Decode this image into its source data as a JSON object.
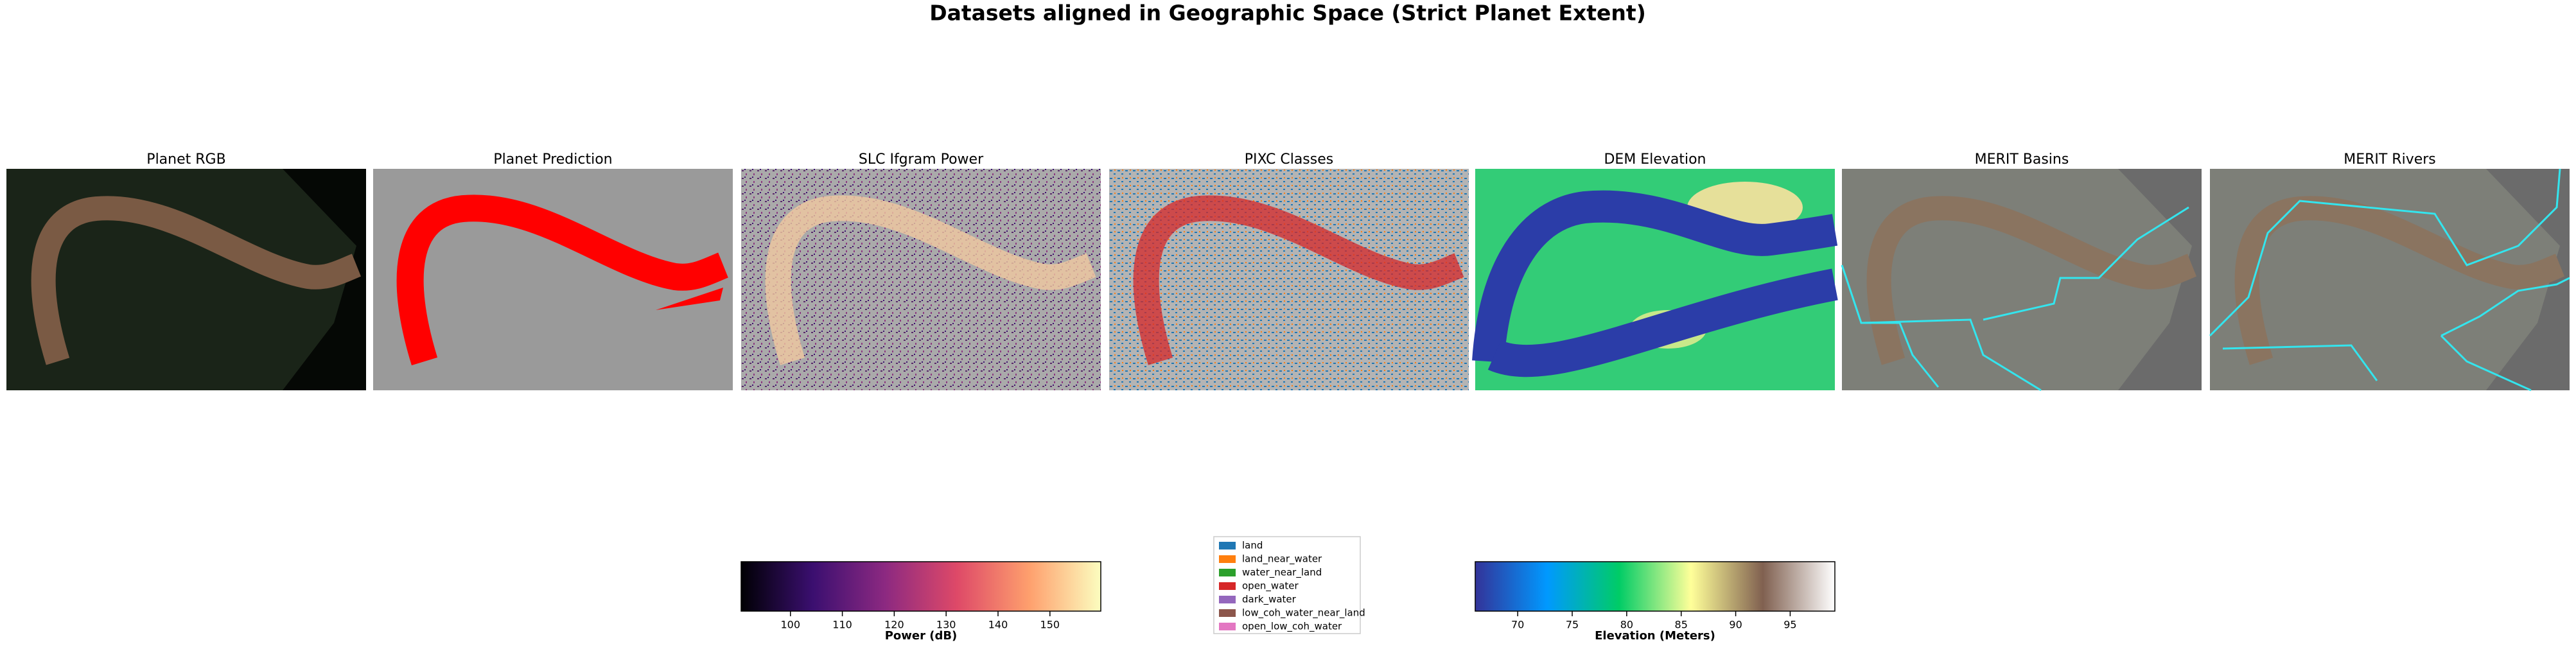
{
  "title": "Datasets aligned in Geographic Space (Strict Planet Extent)",
  "panels": [
    {
      "title": "Planet RGB"
    },
    {
      "title": "Planet Prediction"
    },
    {
      "title": "SLC Ifgram Power"
    },
    {
      "title": "PIXC Classes"
    },
    {
      "title": "DEM Elevation"
    },
    {
      "title": "MERIT Basins"
    },
    {
      "title": "MERIT Rivers"
    }
  ],
  "colorbars": [
    {
      "label": "Power (dB)",
      "lim": [
        90.5,
        159.8
      ],
      "ticks": [
        100,
        110,
        120,
        130,
        140,
        150
      ],
      "colors": [
        "#000004",
        "#3b0f70",
        "#8c2981",
        "#de4968",
        "#fe9f6d",
        "#fcfdbf"
      ]
    },
    {
      "label": "Elevation (Meters)",
      "lim": [
        66.1,
        99.1
      ],
      "ticks": [
        70,
        75,
        80,
        85,
        90,
        95
      ],
      "colors": [
        "#333399",
        "#0099ff",
        "#00cc66",
        "#ffff99",
        "#806050",
        "#ffffff"
      ]
    }
  ],
  "legend": {
    "entries": [
      {
        "name": "land",
        "color": "#1f77b4"
      },
      {
        "name": "land_near_water",
        "color": "#ff7f0e"
      },
      {
        "name": "water_near_land",
        "color": "#2ca02c"
      },
      {
        "name": "open_water",
        "color": "#d62728"
      },
      {
        "name": "dark_water",
        "color": "#9467bd"
      },
      {
        "name": "low_coh_water_near_land",
        "color": "#8c564b"
      },
      {
        "name": "open_low_coh_water",
        "color": "#e377c2"
      }
    ]
  }
}
